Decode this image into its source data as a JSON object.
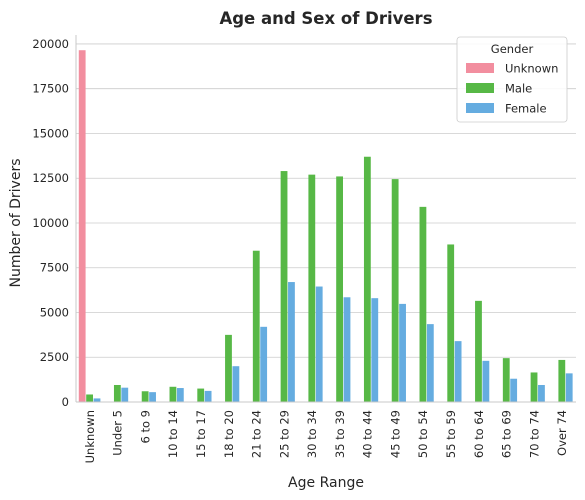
{
  "chart_data": {
    "type": "bar",
    "title": "Age and Sex of Drivers",
    "xlabel": "Age Range",
    "ylabel": "Number of Drivers",
    "ylim": [
      0,
      20500
    ],
    "yticks": [
      0,
      2500,
      5000,
      7500,
      10000,
      12500,
      15000,
      17500,
      20000
    ],
    "grid": "horizontal",
    "legend": {
      "title": "Gender",
      "placement": "top-right"
    },
    "categories": [
      "Unknown",
      "Under 5",
      "6 to 9",
      "10 to 14",
      "15 to 17",
      "18 to 20",
      "21 to 24",
      "25 to 29",
      "30 to 34",
      "35 to 39",
      "40 to 44",
      "45 to 49",
      "50 to 54",
      "55 to 59",
      "60 to 64",
      "65 to 69",
      "70 to 74",
      "Over 74"
    ],
    "series": [
      {
        "name": "Unknown",
        "color": "#f28e9f",
        "values": [
          19650,
          0,
          0,
          0,
          0,
          0,
          0,
          0,
          0,
          0,
          0,
          0,
          0,
          0,
          0,
          0,
          0,
          0
        ]
      },
      {
        "name": "Male",
        "color": "#57b846",
        "values": [
          420,
          950,
          600,
          850,
          750,
          3750,
          8450,
          12900,
          12700,
          12600,
          13700,
          12450,
          10900,
          8800,
          5650,
          2450,
          1650,
          2350
        ]
      },
      {
        "name": "Female",
        "color": "#65ace0",
        "values": [
          200,
          800,
          550,
          780,
          620,
          2000,
          4200,
          6700,
          6450,
          5850,
          5800,
          5480,
          4350,
          3400,
          2300,
          1300,
          950,
          1600
        ]
      }
    ]
  }
}
